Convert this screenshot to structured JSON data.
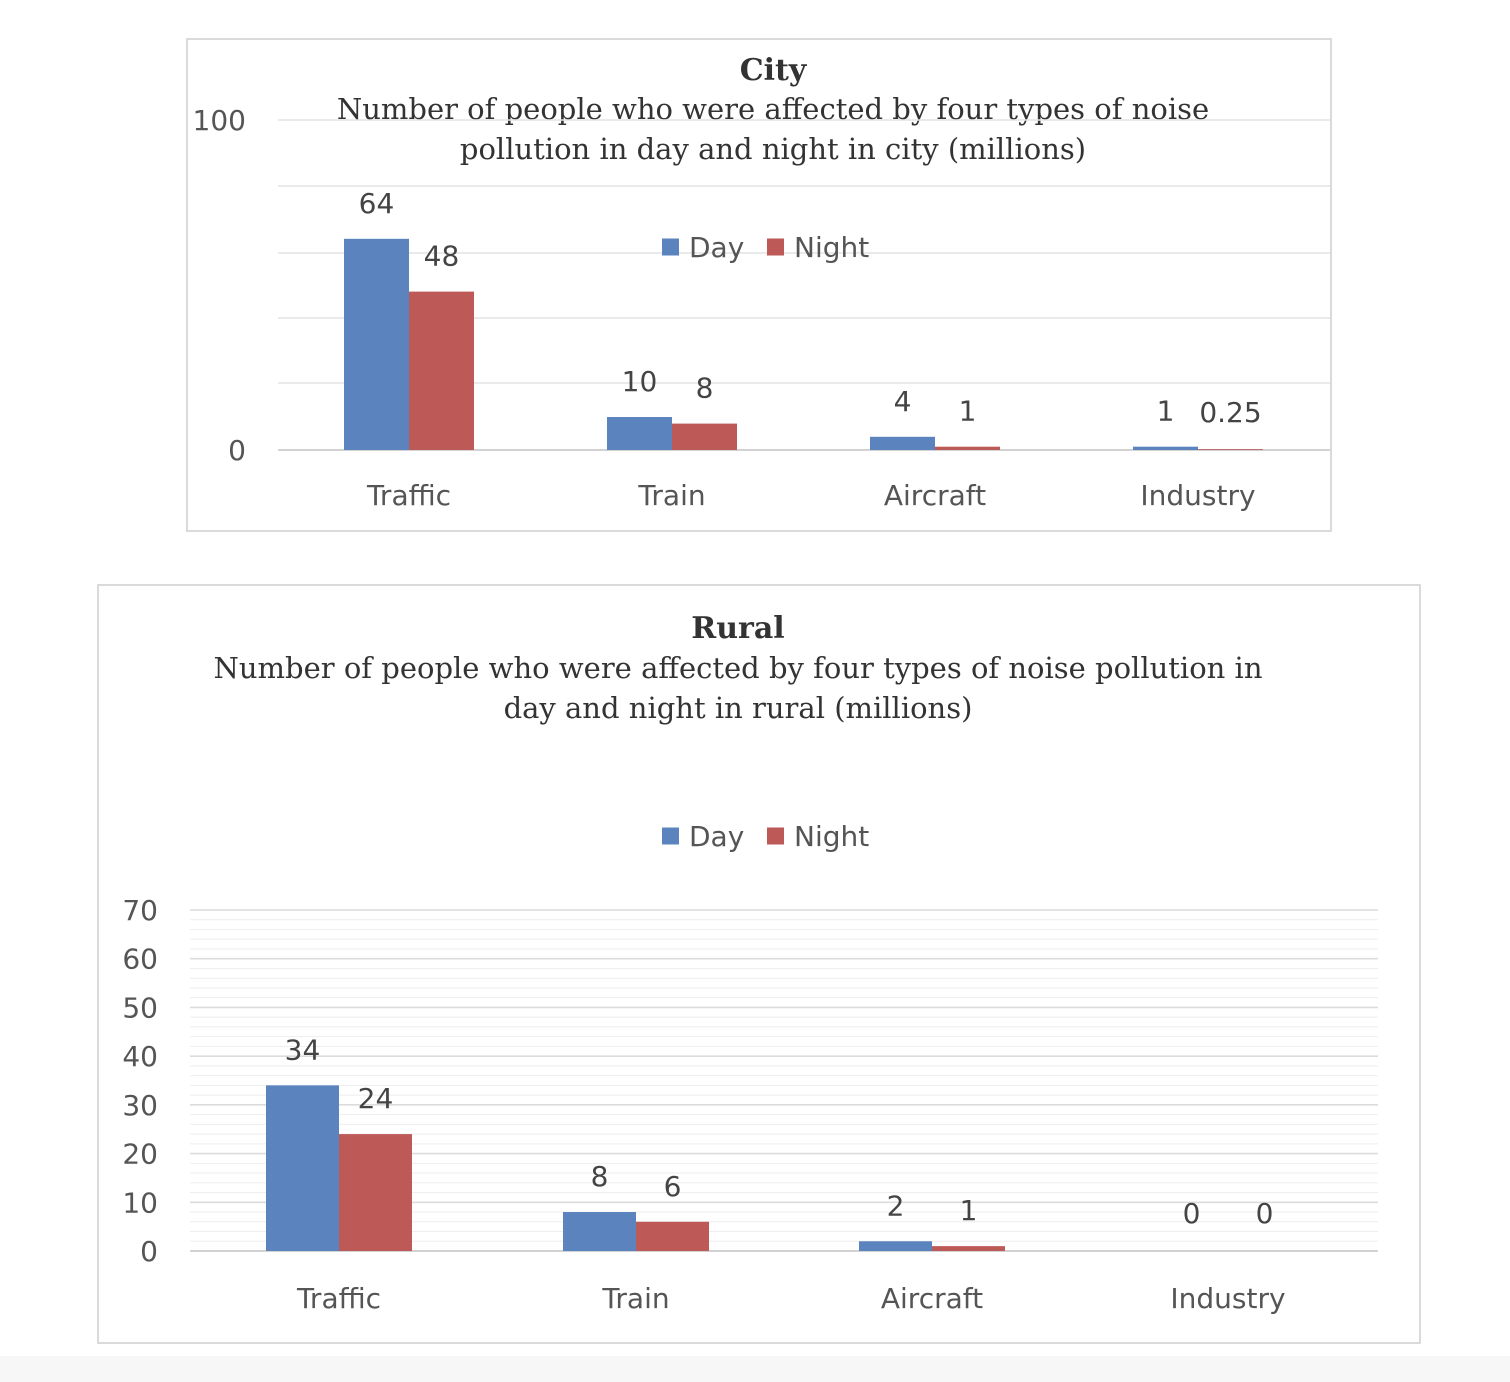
{
  "chart_data": [
    {
      "type": "bar",
      "title": "City",
      "subtitle_lines": [
        "Number of people who were affected by four types of noise",
        "pollution in day and night in city (millions)"
      ],
      "categories": [
        "Traffic",
        "Train",
        "Aircraft",
        "Industry"
      ],
      "series": [
        {
          "name": "Day",
          "color": "#5b84be",
          "values": [
            64,
            10,
            4,
            1
          ],
          "labels": [
            "64",
            "10",
            "4",
            "1"
          ]
        },
        {
          "name": "Night",
          "color": "#bd5a58",
          "values": [
            48,
            8,
            1,
            0.25
          ],
          "labels": [
            "48",
            "8",
            "1",
            "0.25"
          ]
        }
      ],
      "ylim": [
        0,
        100
      ],
      "yticks": [
        "0",
        "100"
      ],
      "grid": true,
      "legend_position": "top-center"
    },
    {
      "type": "bar",
      "title": "Rural",
      "subtitle_lines": [
        "Number of people who were affected by four types of noise pollution in",
        "day and night in rural (millions)"
      ],
      "categories": [
        "Traffic",
        "Train",
        "Aircraft",
        "Industry"
      ],
      "series": [
        {
          "name": "Day",
          "color": "#5b84be",
          "values": [
            34,
            8,
            2,
            0
          ],
          "labels": [
            "34",
            "8",
            "2",
            "0"
          ]
        },
        {
          "name": "Night",
          "color": "#bd5a58",
          "values": [
            24,
            6,
            1,
            0
          ],
          "labels": [
            "24",
            "6",
            "1",
            "0"
          ]
        }
      ],
      "ylim": [
        0,
        70
      ],
      "yticks": [
        "0",
        "10",
        "20",
        "30",
        "40",
        "50",
        "60",
        "70"
      ],
      "grid": true,
      "legend_position": "top-center"
    }
  ]
}
